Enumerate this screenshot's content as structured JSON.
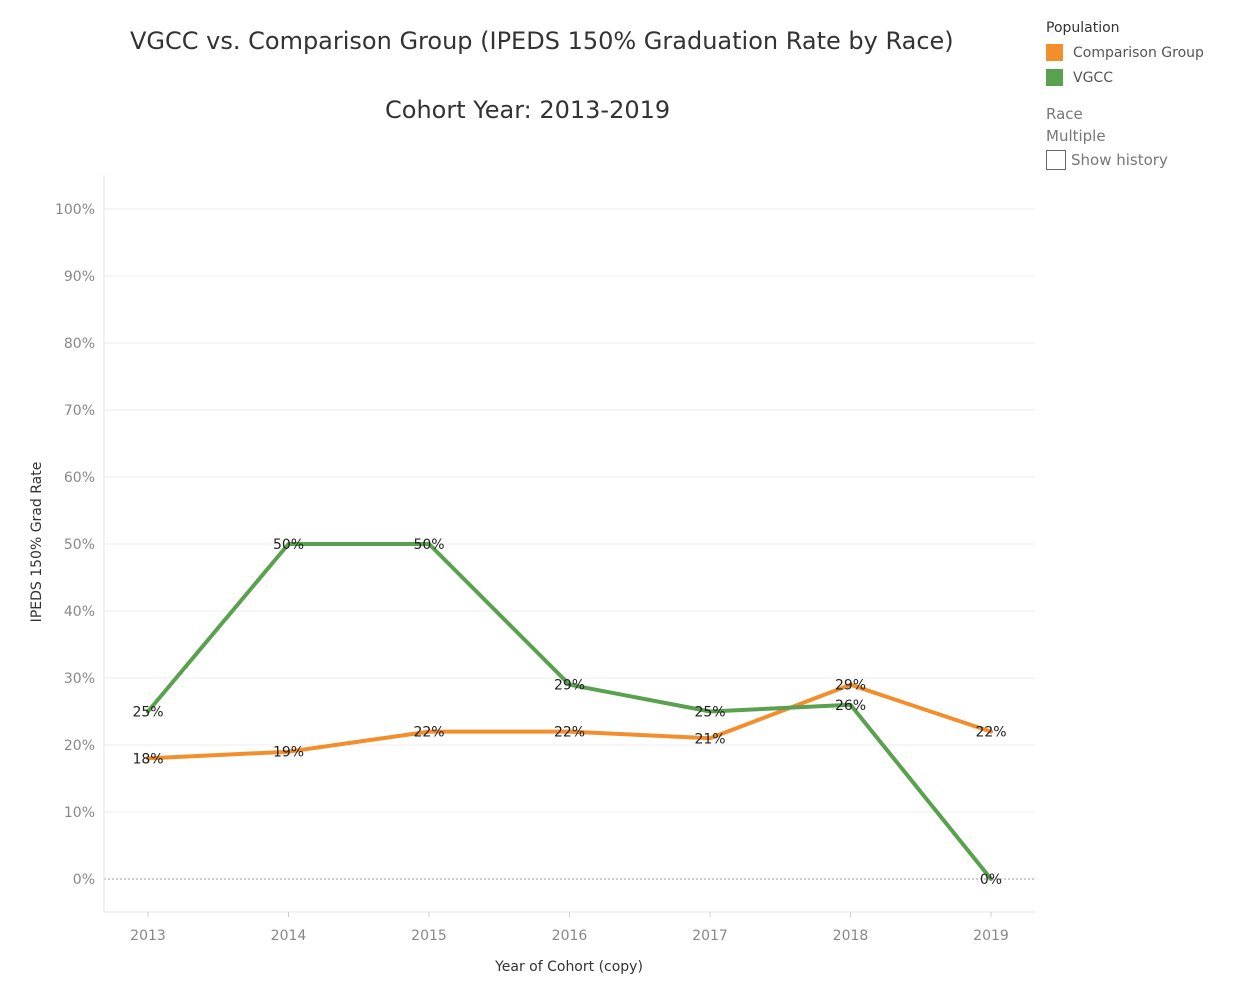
{
  "title": {
    "line1": "VGCC vs. Comparison Group (IPEDS 150% Graduation Rate by Race)",
    "line2": "Cohort Year: 2013-2019"
  },
  "legend": {
    "title": "Population",
    "items": [
      {
        "label": "Comparison Group",
        "color": "#F28E2B"
      },
      {
        "label": "VGCC",
        "color": "#59A14F"
      }
    ]
  },
  "filter": {
    "title": "Race",
    "value": "Multiple",
    "show_history_label": "Show history"
  },
  "chart_data": {
    "type": "line",
    "x": [
      "2013",
      "2014",
      "2015",
      "2016",
      "2017",
      "2018",
      "2019"
    ],
    "xlabel": "Year of Cohort (copy)",
    "ylabel": "IPEDS 150%  Grad Rate",
    "ylim": [
      -5,
      105
    ],
    "yticks": [
      "0%",
      "10%",
      "20%",
      "30%",
      "40%",
      "50%",
      "60%",
      "70%",
      "80%",
      "90%",
      "100%"
    ],
    "grid": true,
    "legend_position": "top-right",
    "series": [
      {
        "name": "Comparison Group",
        "color": "#F28E2B",
        "values": [
          18,
          19,
          22,
          22,
          21,
          29,
          22
        ],
        "labels": [
          "18%",
          "19%",
          "22%",
          "22%",
          "21%",
          "29%",
          "22%"
        ]
      },
      {
        "name": "VGCC",
        "color": "#59A14F",
        "values": [
          25,
          50,
          50,
          29,
          25,
          26,
          0
        ],
        "labels": [
          "25%",
          "50%",
          "50%",
          "29%",
          "25%",
          "26%",
          "0%"
        ]
      }
    ]
  }
}
